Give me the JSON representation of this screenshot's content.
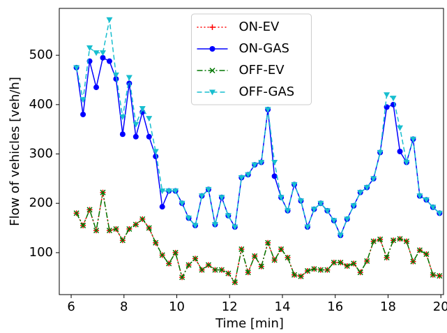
{
  "chart_data": {
    "type": "line",
    "xlabel": "Time [min]",
    "ylabel": "Flow of vehicles [veh/h]",
    "x": [
      6.2,
      6.45,
      6.7,
      6.95,
      7.2,
      7.45,
      7.7,
      7.95,
      8.2,
      8.45,
      8.7,
      8.95,
      9.2,
      9.45,
      9.7,
      9.95,
      10.2,
      10.45,
      10.7,
      10.95,
      11.2,
      11.45,
      11.7,
      11.95,
      12.2,
      12.45,
      12.7,
      12.95,
      13.2,
      13.45,
      13.7,
      13.95,
      14.2,
      14.45,
      14.7,
      14.95,
      15.2,
      15.45,
      15.7,
      15.95,
      16.2,
      16.45,
      16.7,
      16.95,
      17.2,
      17.45,
      17.7,
      17.95,
      18.2,
      18.45,
      18.7,
      18.95,
      19.2,
      19.45,
      19.7,
      19.95
    ],
    "series": [
      {
        "name": "ON-EV",
        "color": "#ff0000",
        "marker": "+",
        "dash": "2,3",
        "values": [
          180,
          155,
          187,
          145,
          222,
          145,
          148,
          125,
          148,
          157,
          168,
          150,
          120,
          95,
          78,
          100,
          50,
          75,
          88,
          65,
          75,
          65,
          65,
          58,
          40,
          107,
          60,
          93,
          72,
          120,
          85,
          107,
          90,
          55,
          52,
          63,
          67,
          65,
          65,
          80,
          80,
          73,
          78,
          60,
          83,
          123,
          127,
          90,
          125,
          128,
          123,
          82,
          105,
          97,
          55,
          53
        ]
      },
      {
        "name": "ON-GAS",
        "color": "#0000ff",
        "marker": "o",
        "dash": "none",
        "values": [
          475,
          380,
          488,
          435,
          495,
          488,
          452,
          340,
          443,
          335,
          385,
          335,
          295,
          193,
          225,
          225,
          200,
          170,
          155,
          215,
          228,
          157,
          212,
          175,
          152,
          252,
          258,
          278,
          283,
          390,
          255,
          212,
          185,
          238,
          205,
          152,
          188,
          200,
          185,
          165,
          135,
          168,
          195,
          222,
          232,
          250,
          303,
          395,
          400,
          305,
          283,
          330,
          215,
          207,
          192,
          180
        ]
      },
      {
        "name": "OFF-EV",
        "color": "#007700",
        "marker": "x",
        "dash": "8,3,2,3",
        "values": [
          180,
          155,
          187,
          145,
          222,
          145,
          148,
          125,
          148,
          157,
          168,
          150,
          120,
          95,
          78,
          100,
          50,
          75,
          88,
          65,
          75,
          65,
          65,
          58,
          40,
          107,
          60,
          93,
          72,
          120,
          85,
          107,
          90,
          55,
          52,
          63,
          67,
          65,
          65,
          80,
          80,
          73,
          78,
          60,
          83,
          123,
          127,
          90,
          125,
          128,
          123,
          82,
          105,
          97,
          55,
          53
        ]
      },
      {
        "name": "OFF-GAS",
        "color": "#17becf",
        "marker": "v",
        "dash": "7,4",
        "values": [
          475,
          410,
          515,
          505,
          505,
          572,
          460,
          375,
          455,
          360,
          392,
          372,
          305,
          225,
          225,
          225,
          200,
          170,
          155,
          215,
          228,
          157,
          212,
          175,
          152,
          252,
          258,
          278,
          283,
          390,
          283,
          212,
          185,
          238,
          205,
          152,
          188,
          200,
          185,
          165,
          135,
          168,
          195,
          222,
          232,
          250,
          303,
          420,
          413,
          353,
          283,
          330,
          215,
          207,
          192,
          180
        ]
      }
    ],
    "xlim": [
      5.55,
      20.1
    ],
    "xticks": [
      6,
      8,
      10,
      12,
      14,
      16,
      18,
      20
    ],
    "ylim": [
      15,
      595
    ],
    "yticks": [
      100,
      200,
      300,
      400,
      500
    ],
    "legend": "upper center"
  }
}
